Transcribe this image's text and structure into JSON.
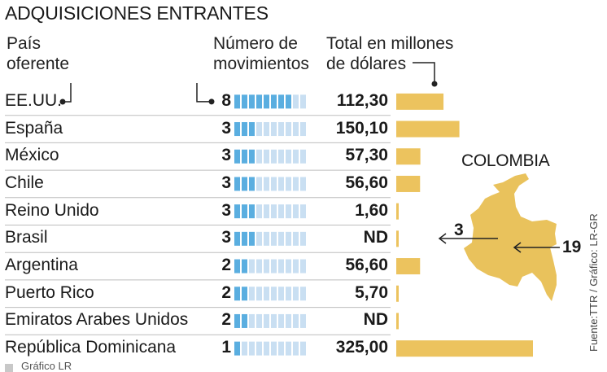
{
  "title": "ADQUISICIONES ENTRANTES",
  "headers": {
    "country": [
      "País",
      "oferente"
    ],
    "moves": [
      "Número de",
      "movimientos"
    ],
    "total": [
      "Total en millones",
      "de dólares"
    ]
  },
  "chart_data": {
    "type": "table",
    "title": "ADQUISICIONES ENTRANTES",
    "columns": [
      "País oferente",
      "Número de movimientos",
      "Total en millones de dólares"
    ],
    "rows": [
      {
        "country": "EE.UU.",
        "moves": 8,
        "value_label": "112,30",
        "value": 112.3
      },
      {
        "country": "España",
        "moves": 3,
        "value_label": "150,10",
        "value": 150.1
      },
      {
        "country": "México",
        "moves": 3,
        "value_label": "57,30",
        "value": 57.3
      },
      {
        "country": "Chile",
        "moves": 3,
        "value_label": "56,60",
        "value": 56.6
      },
      {
        "country": "Reino Unido",
        "moves": 3,
        "value_label": "1,60",
        "value": 1.6
      },
      {
        "country": "Brasil",
        "moves": 3,
        "value_label": "ND",
        "value": null
      },
      {
        "country": "Argentina",
        "moves": 2,
        "value_label": "56,60",
        "value": 56.6
      },
      {
        "country": "Puerto Rico",
        "moves": 2,
        "value_label": "5,70",
        "value": 5.7
      },
      {
        "country": "Emiratos Arabes Unidos",
        "moves": 2,
        "value_label": "ND",
        "value": null
      },
      {
        "country": "República Dominicana",
        "moves": 1,
        "value_label": "325,00",
        "value": 325.0
      }
    ],
    "moves_max_boxes": 10,
    "value_scale_max": 325.0
  },
  "map": {
    "label": "COLOMBIA",
    "outgoing": "3",
    "incoming": "19"
  },
  "credit": "Gráfico LR",
  "source": "Fuente:TTR / Gráfico: LR-GR",
  "colors": {
    "bar": "#ecc35e",
    "box_filled": "#5aaee0",
    "box_empty": "#c9dff2",
    "divider": "#bdbdbd",
    "map": "#e9c25c"
  }
}
